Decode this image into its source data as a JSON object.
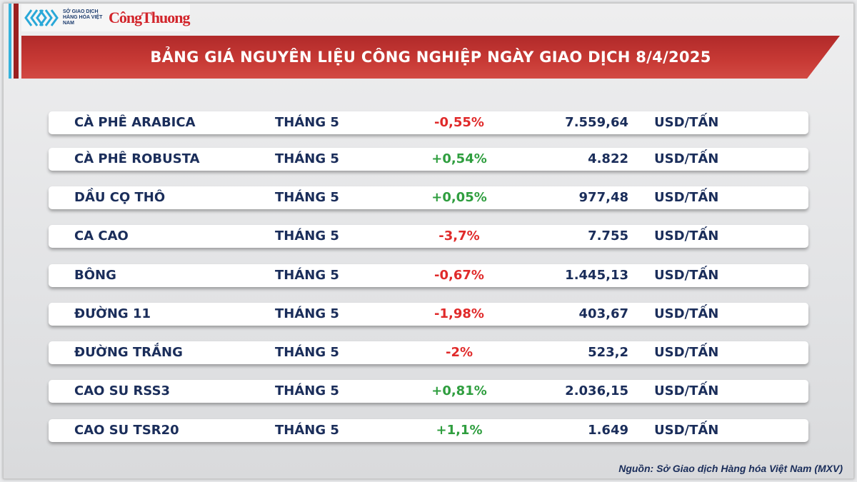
{
  "logo": {
    "mxv_text": "SỞ GIAO DỊCH HÀNG HÓA VIỆT NAM",
    "cong_thuong": "CôngThuong"
  },
  "title": "BẢNG GIÁ NGUYÊN LIỆU CÔNG NGHIỆP NGÀY GIAO DỊCH 8/4/2025",
  "colors": {
    "negative": "#e02a2a",
    "positive": "#2f9e3f",
    "header": "#c0332f",
    "text": "#1a2d5a"
  },
  "rows": [
    {
      "name": "CÀ PHÊ ARABICA",
      "month": "THÁNG 5",
      "change": "-0,55%",
      "price": "7.559,64",
      "unit": "USD/TẤN"
    },
    {
      "name": "CÀ PHÊ ROBUSTA",
      "month": "THÁNG 5",
      "change": "+0,54%",
      "price": "4.822",
      "unit": "USD/TẤN"
    },
    {
      "name": "DẦU CỌ THÔ",
      "month": "THÁNG 5",
      "change": "+0,05%",
      "price": "977,48",
      "unit": "USD/TẤN"
    },
    {
      "name": "CA CAO",
      "month": "THÁNG 5",
      "change": "-3,7%",
      "price": "7.755",
      "unit": "USD/TẤN"
    },
    {
      "name": "BÔNG",
      "month": "THÁNG 5",
      "change": "-0,67%",
      "price": "1.445,13",
      "unit": "USD/TẤN"
    },
    {
      "name": "ĐƯỜNG 11",
      "month": "THÁNG 5",
      "change": "-1,98%",
      "price": "403,67",
      "unit": "USD/TẤN"
    },
    {
      "name": "ĐƯỜNG TRẮNG",
      "month": "THÁNG 5",
      "change": "-2%",
      "price": "523,2",
      "unit": "USD/TẤN"
    },
    {
      "name": "CAO SU RSS3",
      "month": "THÁNG 5",
      "change": "+0,81%",
      "price": "2.036,15",
      "unit": "USD/TẤN"
    },
    {
      "name": "CAO SU TSR20",
      "month": "THÁNG 5",
      "change": "+1,1%",
      "price": "1.649",
      "unit": "USD/TẤN"
    }
  ],
  "source": "Nguồn: Sở Giao dịch Hàng hóa Việt Nam (MXV)"
}
